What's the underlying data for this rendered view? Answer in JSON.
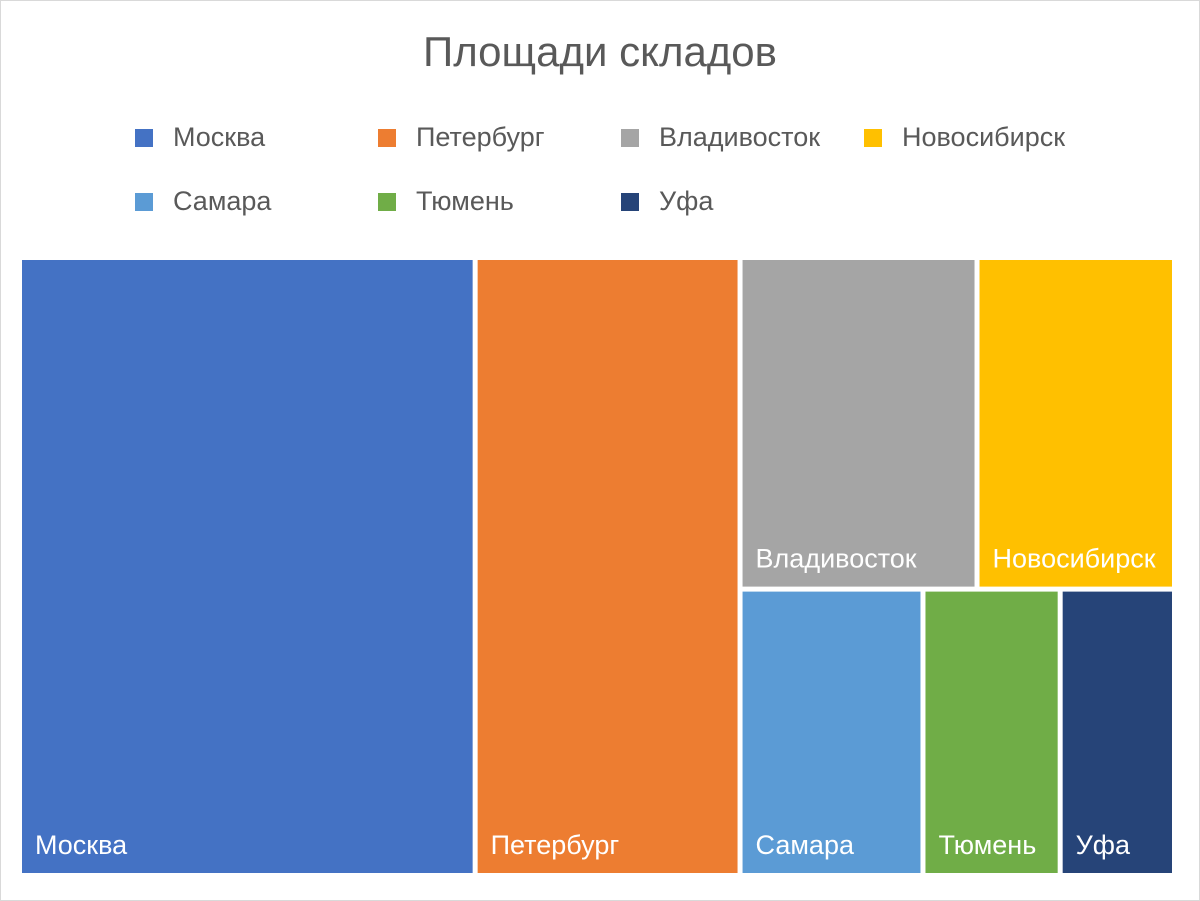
{
  "chart_data": {
    "type": "treemap",
    "title": "Площади складов",
    "legend_position": "top",
    "categories": [
      "Москва",
      "Петербург",
      "Владивосток",
      "Новосибирск",
      "Самара",
      "Тюмень",
      "Уфа"
    ],
    "values": [
      43,
      25,
      12,
      10,
      8,
      6,
      5
    ],
    "colors": [
      "#4472C4",
      "#ED7D31",
      "#A5A5A5",
      "#FFC000",
      "#5B9BD5",
      "#70AD47",
      "#264478"
    ]
  }
}
